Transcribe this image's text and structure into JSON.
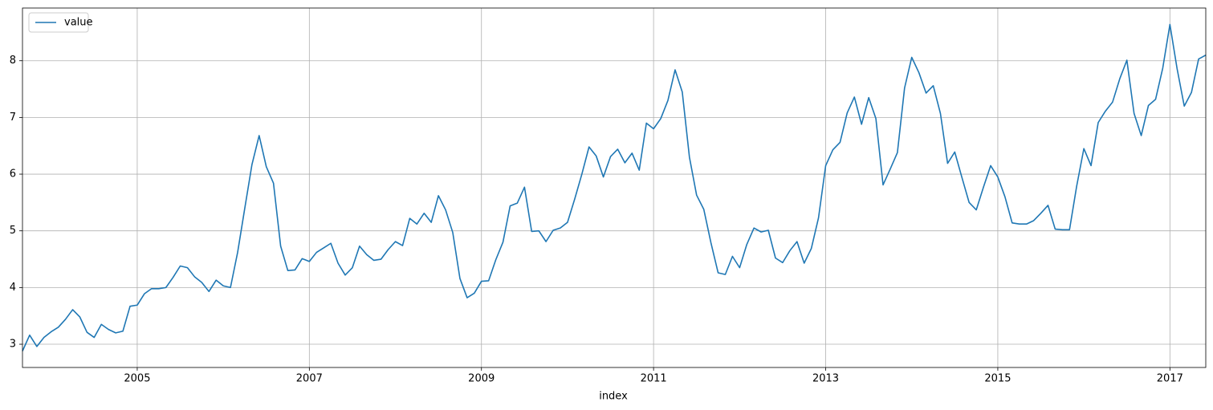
{
  "chart_data": {
    "type": "line",
    "xlabel": "index",
    "legend": "upper left",
    "grid": true,
    "xlim": [
      "2003-09",
      "2017-06"
    ],
    "ylim": [
      2.59,
      8.93
    ],
    "xticks": [
      {
        "value": "2005-01",
        "label": "2005"
      },
      {
        "value": "2007-01",
        "label": "2007"
      },
      {
        "value": "2009-01",
        "label": "2009"
      },
      {
        "value": "2011-01",
        "label": "2011"
      },
      {
        "value": "2013-01",
        "label": "2013"
      },
      {
        "value": "2015-01",
        "label": "2015"
      },
      {
        "value": "2017-01",
        "label": "2017"
      }
    ],
    "yticks": [
      3,
      4,
      5,
      6,
      7,
      8
    ],
    "x": [
      "2003-09",
      "2003-10",
      "2003-11",
      "2003-12",
      "2004-01",
      "2004-02",
      "2004-03",
      "2004-04",
      "2004-05",
      "2004-06",
      "2004-07",
      "2004-08",
      "2004-09",
      "2004-10",
      "2004-11",
      "2004-12",
      "2005-01",
      "2005-02",
      "2005-03",
      "2005-04",
      "2005-05",
      "2005-06",
      "2005-07",
      "2005-08",
      "2005-09",
      "2005-10",
      "2005-11",
      "2005-12",
      "2006-01",
      "2006-02",
      "2006-03",
      "2006-04",
      "2006-05",
      "2006-06",
      "2006-07",
      "2006-08",
      "2006-09",
      "2006-10",
      "2006-11",
      "2006-12",
      "2007-01",
      "2007-02",
      "2007-03",
      "2007-04",
      "2007-05",
      "2007-06",
      "2007-07",
      "2007-08",
      "2007-09",
      "2007-10",
      "2007-11",
      "2007-12",
      "2008-01",
      "2008-02",
      "2008-03",
      "2008-04",
      "2008-05",
      "2008-06",
      "2008-07",
      "2008-08",
      "2008-09",
      "2008-10",
      "2008-11",
      "2008-12",
      "2009-01",
      "2009-02",
      "2009-03",
      "2009-04",
      "2009-05",
      "2009-06",
      "2009-07",
      "2009-08",
      "2009-09",
      "2009-10",
      "2009-11",
      "2009-12",
      "2010-01",
      "2010-02",
      "2010-03",
      "2010-04",
      "2010-05",
      "2010-06",
      "2010-07",
      "2010-08",
      "2010-09",
      "2010-10",
      "2010-11",
      "2010-12",
      "2011-01",
      "2011-02",
      "2011-03",
      "2011-04",
      "2011-05",
      "2011-06",
      "2011-07",
      "2011-08",
      "2011-09",
      "2011-10",
      "2011-11",
      "2011-12",
      "2012-01",
      "2012-02",
      "2012-03",
      "2012-04",
      "2012-05",
      "2012-06",
      "2012-07",
      "2012-08",
      "2012-09",
      "2012-10",
      "2012-11",
      "2012-12",
      "2013-01",
      "2013-02",
      "2013-03",
      "2013-04",
      "2013-05",
      "2013-06",
      "2013-07",
      "2013-08",
      "2013-09",
      "2013-10",
      "2013-11",
      "2013-12",
      "2014-01",
      "2014-02",
      "2014-03",
      "2014-04",
      "2014-05",
      "2014-06",
      "2014-07",
      "2014-08",
      "2014-09",
      "2014-10",
      "2014-11",
      "2014-12",
      "2015-01",
      "2015-02",
      "2015-03",
      "2015-04",
      "2015-05",
      "2015-06",
      "2015-07",
      "2015-08",
      "2015-09",
      "2015-10",
      "2015-11",
      "2015-12",
      "2016-01",
      "2016-02",
      "2016-03",
      "2016-04",
      "2016-05",
      "2016-06",
      "2016-07",
      "2016-08",
      "2016-09",
      "2016-10",
      "2016-11",
      "2016-12",
      "2017-01",
      "2017-02",
      "2017-03",
      "2017-04",
      "2017-05",
      "2017-06"
    ],
    "series": [
      {
        "name": "value",
        "color": "#1f77b4",
        "values": [
          2.88,
          3.16,
          2.96,
          3.12,
          3.22,
          3.3,
          3.44,
          3.61,
          3.48,
          3.21,
          3.12,
          3.35,
          3.26,
          3.2,
          3.23,
          3.67,
          3.69,
          3.89,
          3.98,
          3.98,
          4.0,
          4.18,
          4.38,
          4.35,
          4.19,
          4.09,
          3.93,
          4.13,
          4.03,
          4.0,
          4.62,
          5.4,
          6.17,
          6.68,
          6.13,
          5.84,
          4.73,
          4.3,
          4.31,
          4.51,
          4.46,
          4.62,
          4.7,
          4.78,
          4.43,
          4.22,
          4.35,
          4.73,
          4.58,
          4.48,
          4.5,
          4.67,
          4.81,
          4.74,
          5.22,
          5.12,
          5.31,
          5.15,
          5.62,
          5.37,
          4.97,
          4.16,
          3.82,
          3.9,
          4.11,
          4.12,
          4.49,
          4.8,
          5.44,
          5.49,
          5.77,
          4.99,
          5.0,
          4.81,
          5.01,
          5.05,
          5.15,
          5.56,
          6.0,
          6.48,
          6.32,
          5.95,
          6.31,
          6.44,
          6.2,
          6.37,
          6.07,
          6.9,
          6.8,
          6.98,
          7.3,
          7.84,
          7.45,
          6.3,
          5.63,
          5.38,
          4.79,
          4.26,
          4.23,
          4.55,
          4.35,
          4.76,
          5.05,
          4.98,
          5.01,
          4.52,
          4.44,
          4.65,
          4.81,
          4.43,
          4.69,
          5.23,
          6.15,
          6.43,
          6.56,
          7.08,
          7.36,
          6.88,
          7.35,
          6.98,
          5.81,
          6.09,
          6.38,
          7.52,
          8.06,
          7.79,
          7.43,
          7.56,
          7.07,
          6.19,
          6.39,
          5.94,
          5.5,
          5.37,
          5.77,
          6.15,
          5.95,
          5.6,
          5.14,
          5.12,
          5.12,
          5.18,
          5.31,
          5.45,
          5.03,
          5.02,
          5.02,
          5.79,
          6.45,
          6.15,
          6.91,
          7.11,
          7.27,
          7.68,
          8.01,
          7.07,
          6.68,
          7.21,
          7.32,
          7.87,
          8.64,
          7.86,
          7.2,
          7.44,
          8.03,
          8.1
        ]
      }
    ]
  }
}
